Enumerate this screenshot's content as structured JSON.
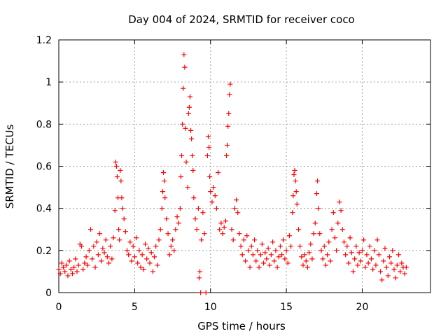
{
  "chart_data": {
    "type": "scatter",
    "title": "Day 004 of 2024, SRMTID for receiver coco",
    "xlabel": "GPS time / hours",
    "ylabel": "SRMTID / TECUs",
    "xlim": [
      0,
      24.5
    ],
    "ylim": [
      0,
      1.2
    ],
    "xticks": [
      0,
      5,
      10,
      15,
      20
    ],
    "xtick_labels": [
      "0",
      "5",
      "10",
      "15",
      "20"
    ],
    "yticks": [
      0,
      0.2,
      0.4,
      0.6,
      0.8,
      1,
      1.2
    ],
    "ytick_labels": [
      "0",
      "0.2",
      "0.4",
      "0.6",
      "0.8",
      "1",
      "1.2"
    ],
    "grid": true,
    "marker": "+",
    "marker_color": "#ff0000",
    "series": [
      {
        "name": "SRMTID",
        "points": [
          [
            0.0,
            0.11
          ],
          [
            0.1,
            0.09
          ],
          [
            0.2,
            0.14
          ],
          [
            0.3,
            0.12
          ],
          [
            0.4,
            0.1
          ],
          [
            0.5,
            0.13
          ],
          [
            0.6,
            0.08
          ],
          [
            0.7,
            0.15
          ],
          [
            0.8,
            0.11
          ],
          [
            0.9,
            0.09
          ],
          [
            1.0,
            0.12
          ],
          [
            1.1,
            0.16
          ],
          [
            1.2,
            0.1
          ],
          [
            1.3,
            0.13
          ],
          [
            1.4,
            0.23
          ],
          [
            1.5,
            0.22
          ],
          [
            1.6,
            0.11
          ],
          [
            1.7,
            0.14
          ],
          [
            1.8,
            0.17
          ],
          [
            1.9,
            0.13
          ],
          [
            2.0,
            0.2
          ],
          [
            2.1,
            0.3
          ],
          [
            2.2,
            0.16
          ],
          [
            2.3,
            0.22
          ],
          [
            2.4,
            0.12
          ],
          [
            2.5,
            0.24
          ],
          [
            2.6,
            0.18
          ],
          [
            2.7,
            0.28
          ],
          [
            2.8,
            0.15
          ],
          [
            2.9,
            0.21
          ],
          [
            3.0,
            0.19
          ],
          [
            3.1,
            0.25
          ],
          [
            3.2,
            0.17
          ],
          [
            3.3,
            0.14
          ],
          [
            3.4,
            0.22
          ],
          [
            3.5,
            0.16
          ],
          [
            3.6,
            0.26
          ],
          [
            3.7,
            0.39
          ],
          [
            3.75,
            0.62
          ],
          [
            3.8,
            0.6
          ],
          [
            3.85,
            0.55
          ],
          [
            3.9,
            0.45
          ],
          [
            3.95,
            0.3
          ],
          [
            4.0,
            0.25
          ],
          [
            4.05,
            0.58
          ],
          [
            4.1,
            0.53
          ],
          [
            4.15,
            0.45
          ],
          [
            4.2,
            0.4
          ],
          [
            4.3,
            0.35
          ],
          [
            4.4,
            0.29
          ],
          [
            4.5,
            0.2
          ],
          [
            4.6,
            0.18
          ],
          [
            4.7,
            0.24
          ],
          [
            4.8,
            0.15
          ],
          [
            4.9,
            0.22
          ],
          [
            5.0,
            0.17
          ],
          [
            5.1,
            0.26
          ],
          [
            5.2,
            0.14
          ],
          [
            5.3,
            0.2
          ],
          [
            5.4,
            0.12
          ],
          [
            5.5,
            0.18
          ],
          [
            5.6,
            0.11
          ],
          [
            5.7,
            0.23
          ],
          [
            5.8,
            0.16
          ],
          [
            5.9,
            0.21
          ],
          [
            6.0,
            0.14
          ],
          [
            6.1,
            0.19
          ],
          [
            6.2,
            0.1
          ],
          [
            6.3,
            0.17
          ],
          [
            6.4,
            0.22
          ],
          [
            6.5,
            0.13
          ],
          [
            6.6,
            0.25
          ],
          [
            6.7,
            0.3
          ],
          [
            6.8,
            0.4
          ],
          [
            6.85,
            0.48
          ],
          [
            6.9,
            0.57
          ],
          [
            6.95,
            0.53
          ],
          [
            7.0,
            0.45
          ],
          [
            7.1,
            0.35
          ],
          [
            7.2,
            0.28
          ],
          [
            7.3,
            0.18
          ],
          [
            7.4,
            0.22
          ],
          [
            7.5,
            0.25
          ],
          [
            7.6,
            0.2
          ],
          [
            7.7,
            0.3
          ],
          [
            7.8,
            0.36
          ],
          [
            7.9,
            0.33
          ],
          [
            8.0,
            0.4
          ],
          [
            8.05,
            0.55
          ],
          [
            8.1,
            0.65
          ],
          [
            8.15,
            0.8
          ],
          [
            8.2,
            0.97
          ],
          [
            8.25,
            1.13
          ],
          [
            8.3,
            1.07
          ],
          [
            8.35,
            0.78
          ],
          [
            8.4,
            0.62
          ],
          [
            8.5,
            0.5
          ],
          [
            8.55,
            0.85
          ],
          [
            8.6,
            0.88
          ],
          [
            8.65,
            0.93
          ],
          [
            8.7,
            0.77
          ],
          [
            8.75,
            0.73
          ],
          [
            8.8,
            0.65
          ],
          [
            8.85,
            0.58
          ],
          [
            8.9,
            0.45
          ],
          [
            9.0,
            0.35
          ],
          [
            9.1,
            0.3
          ],
          [
            9.2,
            0.4
          ],
          [
            9.25,
            0.07
          ],
          [
            9.3,
            0.1
          ],
          [
            9.35,
            0.0
          ],
          [
            9.4,
            0.25
          ],
          [
            9.5,
            0.38
          ],
          [
            9.6,
            0.28
          ],
          [
            9.7,
            0.0
          ],
          [
            9.8,
            0.65
          ],
          [
            9.85,
            0.74
          ],
          [
            9.9,
            0.69
          ],
          [
            9.95,
            0.55
          ],
          [
            10.0,
            0.48
          ],
          [
            10.1,
            0.43
          ],
          [
            10.2,
            0.5
          ],
          [
            10.3,
            0.46
          ],
          [
            10.4,
            0.4
          ],
          [
            10.5,
            0.57
          ],
          [
            10.6,
            0.3
          ],
          [
            10.7,
            0.33
          ],
          [
            10.8,
            0.28
          ],
          [
            10.9,
            0.31
          ],
          [
            11.0,
            0.34
          ],
          [
            11.05,
            0.65
          ],
          [
            11.1,
            0.7
          ],
          [
            11.15,
            0.79
          ],
          [
            11.2,
            0.85
          ],
          [
            11.25,
            0.94
          ],
          [
            11.3,
            0.99
          ],
          [
            11.4,
            0.3
          ],
          [
            11.5,
            0.25
          ],
          [
            11.6,
            0.4
          ],
          [
            11.7,
            0.44
          ],
          [
            11.8,
            0.38
          ],
          [
            11.9,
            0.28
          ],
          [
            12.0,
            0.22
          ],
          [
            12.1,
            0.18
          ],
          [
            12.2,
            0.25
          ],
          [
            12.3,
            0.15
          ],
          [
            12.4,
            0.27
          ],
          [
            12.5,
            0.2
          ],
          [
            12.6,
            0.12
          ],
          [
            12.7,
            0.22
          ],
          [
            12.8,
            0.18
          ],
          [
            12.9,
            0.25
          ],
          [
            13.0,
            0.15
          ],
          [
            13.1,
            0.2
          ],
          [
            13.2,
            0.12
          ],
          [
            13.3,
            0.18
          ],
          [
            13.4,
            0.23
          ],
          [
            13.5,
            0.14
          ],
          [
            13.6,
            0.19
          ],
          [
            13.7,
            0.16
          ],
          [
            13.8,
            0.21
          ],
          [
            13.9,
            0.13
          ],
          [
            14.0,
            0.18
          ],
          [
            14.1,
            0.24
          ],
          [
            14.2,
            0.15
          ],
          [
            14.3,
            0.2
          ],
          [
            14.4,
            0.12
          ],
          [
            14.5,
            0.17
          ],
          [
            14.6,
            0.22
          ],
          [
            14.7,
            0.18
          ],
          [
            14.8,
            0.25
          ],
          [
            14.9,
            0.16
          ],
          [
            15.0,
            0.2
          ],
          [
            15.1,
            0.14
          ],
          [
            15.2,
            0.27
          ],
          [
            15.3,
            0.22
          ],
          [
            15.4,
            0.38
          ],
          [
            15.45,
            0.46
          ],
          [
            15.5,
            0.56
          ],
          [
            15.55,
            0.58
          ],
          [
            15.6,
            0.53
          ],
          [
            15.65,
            0.48
          ],
          [
            15.7,
            0.42
          ],
          [
            15.8,
            0.3
          ],
          [
            15.9,
            0.22
          ],
          [
            16.0,
            0.17
          ],
          [
            16.1,
            0.13
          ],
          [
            16.2,
            0.18
          ],
          [
            16.3,
            0.15
          ],
          [
            16.4,
            0.12
          ],
          [
            16.5,
            0.19
          ],
          [
            16.6,
            0.23
          ],
          [
            16.7,
            0.16
          ],
          [
            16.8,
            0.28
          ],
          [
            16.9,
            0.33
          ],
          [
            17.0,
            0.47
          ],
          [
            17.05,
            0.53
          ],
          [
            17.1,
            0.4
          ],
          [
            17.2,
            0.28
          ],
          [
            17.3,
            0.2
          ],
          [
            17.4,
            0.16
          ],
          [
            17.5,
            0.22
          ],
          [
            17.6,
            0.13
          ],
          [
            17.7,
            0.18
          ],
          [
            17.8,
            0.24
          ],
          [
            17.9,
            0.15
          ],
          [
            18.0,
            0.3
          ],
          [
            18.1,
            0.38
          ],
          [
            18.2,
            0.26
          ],
          [
            18.3,
            0.2
          ],
          [
            18.4,
            0.33
          ],
          [
            18.5,
            0.43
          ],
          [
            18.6,
            0.39
          ],
          [
            18.7,
            0.3
          ],
          [
            18.8,
            0.24
          ],
          [
            18.9,
            0.18
          ],
          [
            19.0,
            0.22
          ],
          [
            19.1,
            0.14
          ],
          [
            19.2,
            0.26
          ],
          [
            19.3,
            0.19
          ],
          [
            19.4,
            0.1
          ],
          [
            19.5,
            0.16
          ],
          [
            19.6,
            0.22
          ],
          [
            19.7,
            0.13
          ],
          [
            19.8,
            0.19
          ],
          [
            19.9,
            0.15
          ],
          [
            20.0,
            0.2
          ],
          [
            20.1,
            0.25
          ],
          [
            20.2,
            0.12
          ],
          [
            20.3,
            0.18
          ],
          [
            20.4,
            0.14
          ],
          [
            20.5,
            0.22
          ],
          [
            20.6,
            0.16
          ],
          [
            20.7,
            0.11
          ],
          [
            20.8,
            0.2
          ],
          [
            20.9,
            0.13
          ],
          [
            21.0,
            0.25
          ],
          [
            21.1,
            0.18
          ],
          [
            21.2,
            0.1
          ],
          [
            21.3,
            0.06
          ],
          [
            21.4,
            0.15
          ],
          [
            21.5,
            0.21
          ],
          [
            21.6,
            0.12
          ],
          [
            21.7,
            0.08
          ],
          [
            21.8,
            0.17
          ],
          [
            21.9,
            0.14
          ],
          [
            22.0,
            0.2
          ],
          [
            22.1,
            0.11
          ],
          [
            22.2,
            0.07
          ],
          [
            22.3,
            0.13
          ],
          [
            22.4,
            0.18
          ],
          [
            22.5,
            0.1
          ],
          [
            22.6,
            0.14
          ],
          [
            22.7,
            0.12
          ],
          [
            22.8,
            0.09
          ],
          [
            22.9,
            0.12
          ]
        ]
      }
    ]
  }
}
